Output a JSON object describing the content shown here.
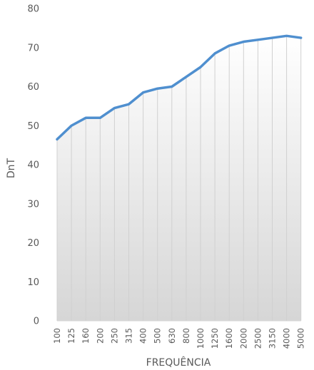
{
  "chart_data": {
    "type": "area",
    "xlabel": "FREQUÊNCIA",
    "ylabel": "DnT",
    "ylim": [
      0,
      80
    ],
    "yticks": [
      0,
      10,
      20,
      30,
      40,
      50,
      60,
      70,
      80
    ],
    "grid": "vertical",
    "categories": [
      "100",
      "125",
      "160",
      "200",
      "250",
      "315",
      "400",
      "500",
      "630",
      "800",
      "1000",
      "1250",
      "1600",
      "2000",
      "2500",
      "3150",
      "4000",
      "5000"
    ],
    "values": [
      46.5,
      50,
      52,
      52,
      54.5,
      55.5,
      58.5,
      59.5,
      60,
      62.5,
      65,
      68.5,
      70.5,
      71.5,
      72,
      72.5,
      73,
      72.5
    ],
    "colors": {
      "line": "#4f8fcf",
      "fill_top": "#ffffff",
      "fill_bottom": "#d6d6d6",
      "grid": "#d0d0d0",
      "text": "#595959"
    }
  }
}
